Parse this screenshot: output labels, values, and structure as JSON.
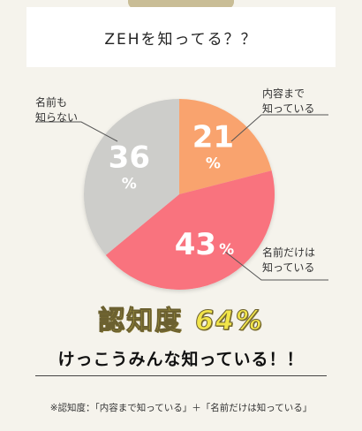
{
  "title": "ZEHを知ってる？？",
  "chart_data": {
    "type": "pie",
    "slices": [
      {
        "label": "内容まで\n知っている",
        "value": 21,
        "display": "21",
        "unit": "%",
        "color": "#f9a36e"
      },
      {
        "label": "名前だけは\n知っている",
        "value": 43,
        "display": "43",
        "unit": "%",
        "color": "#f9737e"
      },
      {
        "label": "名前も\n知らない",
        "value": 36,
        "display": "36",
        "unit": "%",
        "color": "#cdcdca"
      }
    ]
  },
  "awareness": {
    "label": "認知度",
    "value": "64%"
  },
  "headline": "けっこうみんな知っている！！",
  "footnote": "※認知度：「内容まで知っている」＋「名前だけは知っている」"
}
